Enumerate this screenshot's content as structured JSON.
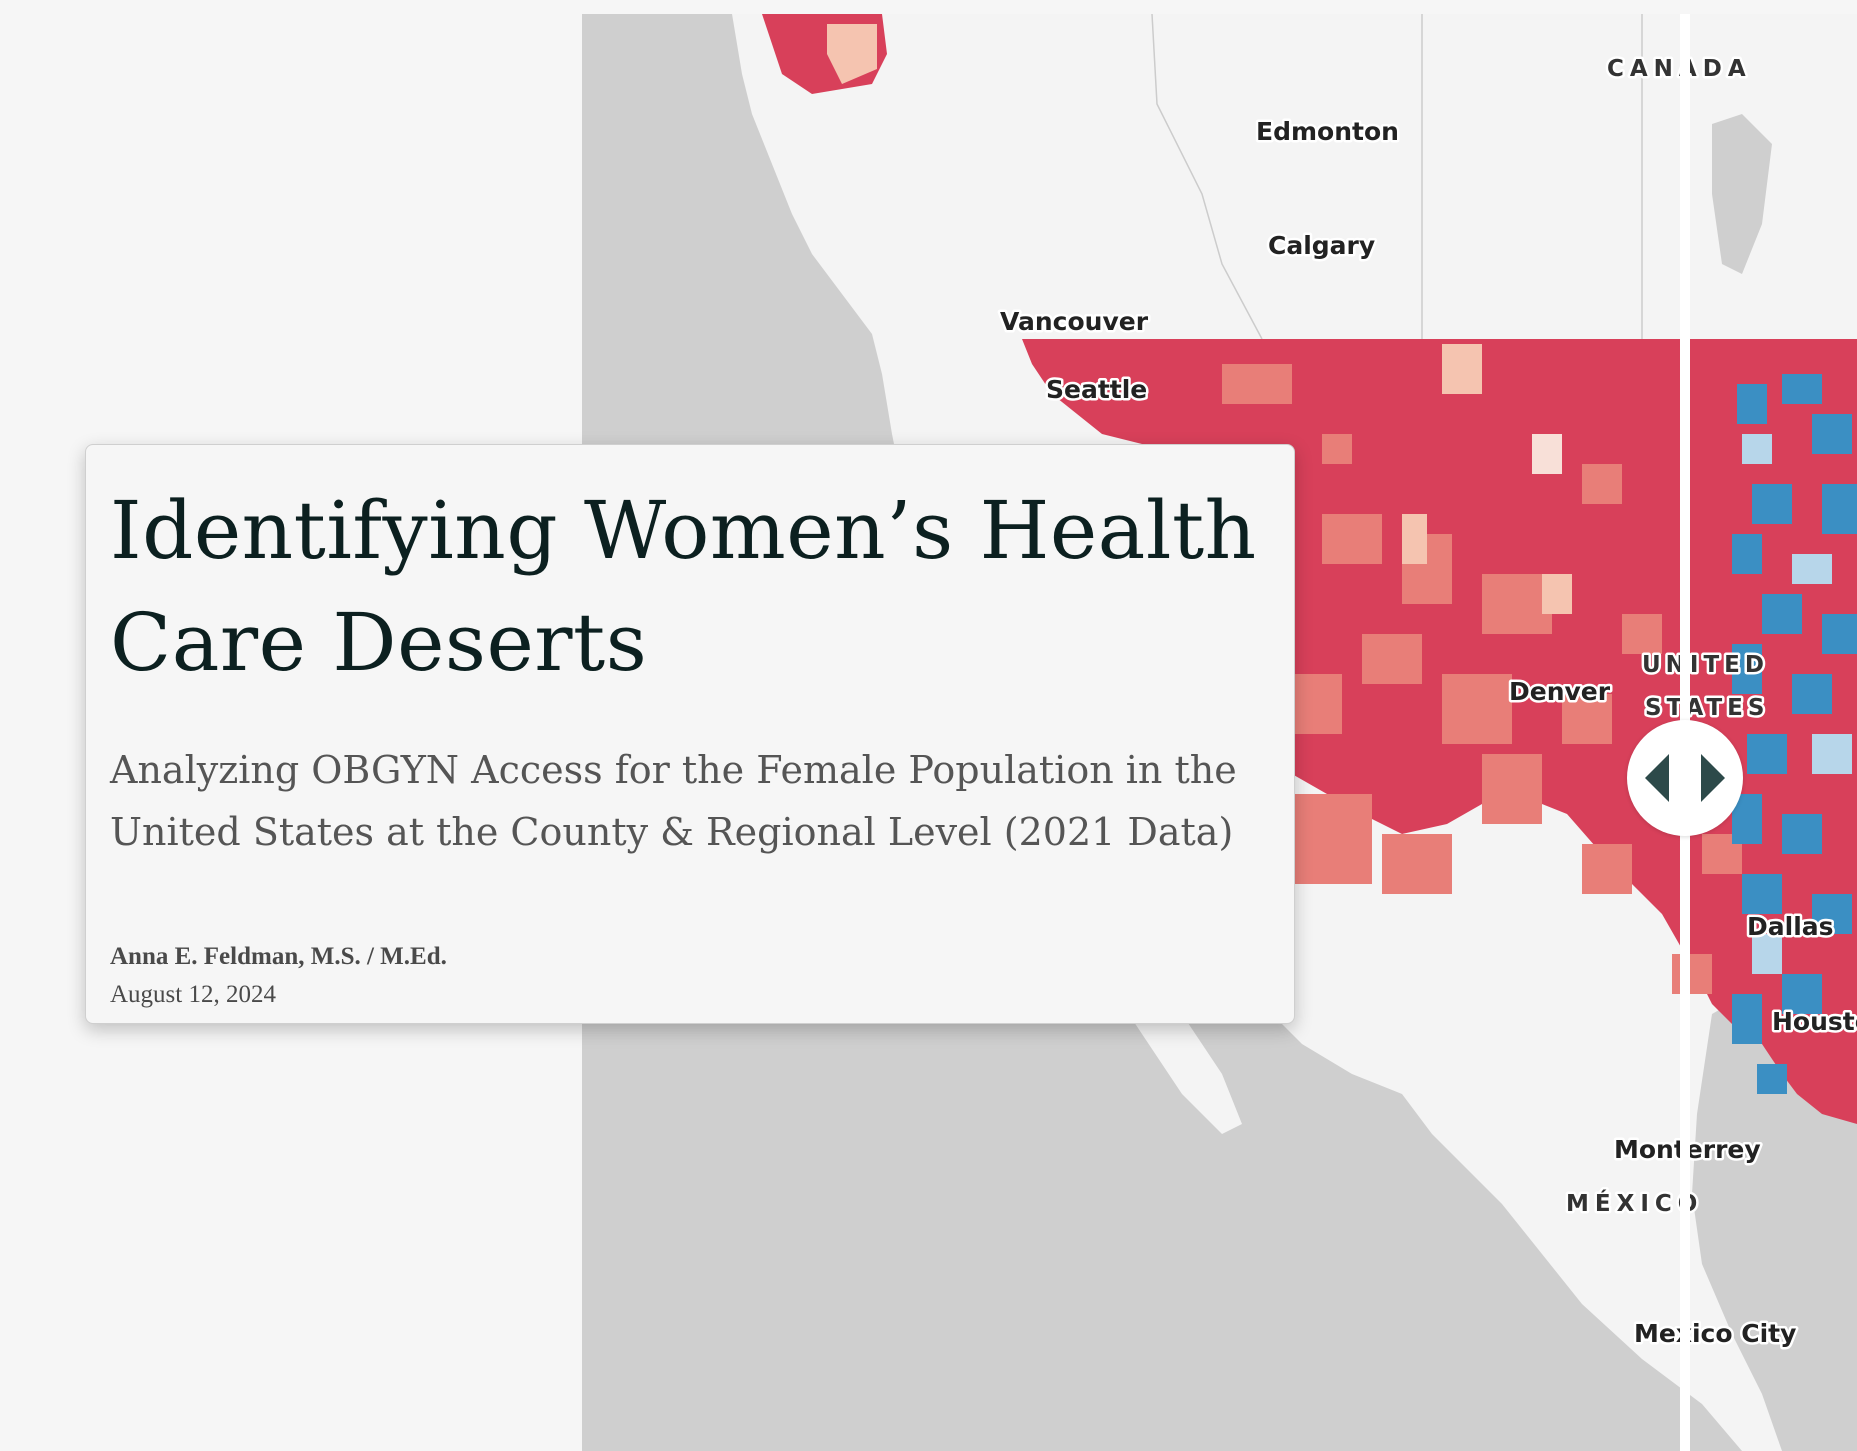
{
  "story": {
    "title": "Identifying Women’s Health Care Deserts",
    "subtitle": "Analyzing OBGYN Access for the Female Population in the United States at the County & Regional Level (2021 Data)",
    "author": "Anna E. Feldman, M.S. / M.Ed.",
    "date": "August 12, 2024"
  },
  "map": {
    "labels": {
      "canada": "CANADA",
      "edmonton": "Edmonton",
      "calgary": "Calgary",
      "vancouver": "Vancouver",
      "seattle": "Seattle",
      "denver": "Denver",
      "united": "UNITED",
      "states": "STATES",
      "dallas": "Dallas",
      "houston": "Housto",
      "monterrey": "Monterrey",
      "mexico": "MÉXICO",
      "mexico_city": "Mexico City"
    },
    "colors": {
      "ocean": "#cfcfcf",
      "land": "#f4f4f4",
      "choropleth_high": "#d8405a",
      "choropleth_mid": "#e87e78",
      "choropleth_low": "#f5c4b0",
      "choropleth_blue": "#3b8fc3",
      "choropleth_light_blue": "#b7d6ea"
    },
    "swipe_handle_icon": "left-right-arrows-icon"
  }
}
